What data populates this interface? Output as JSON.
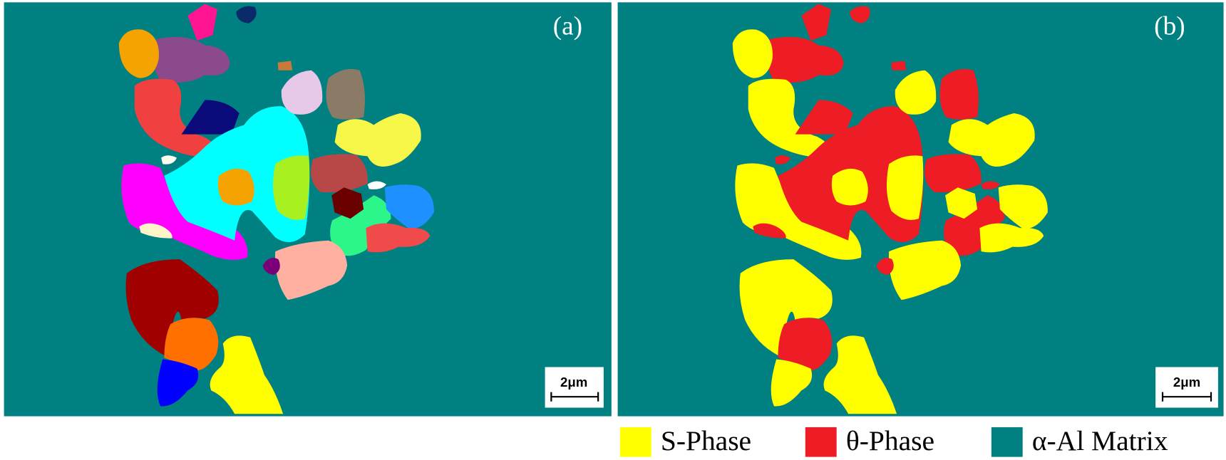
{
  "panels": [
    {
      "label": "(a)",
      "scale_bar": "2μm"
    },
    {
      "label": "(b)",
      "scale_bar": "2μm"
    }
  ],
  "legend": [
    {
      "name": "S-Phase",
      "color": "#ffff00"
    },
    {
      "name": "θ-Phase",
      "color": "#ee1c24"
    },
    {
      "name": "α-Al Matrix",
      "color": "#008080"
    }
  ]
}
